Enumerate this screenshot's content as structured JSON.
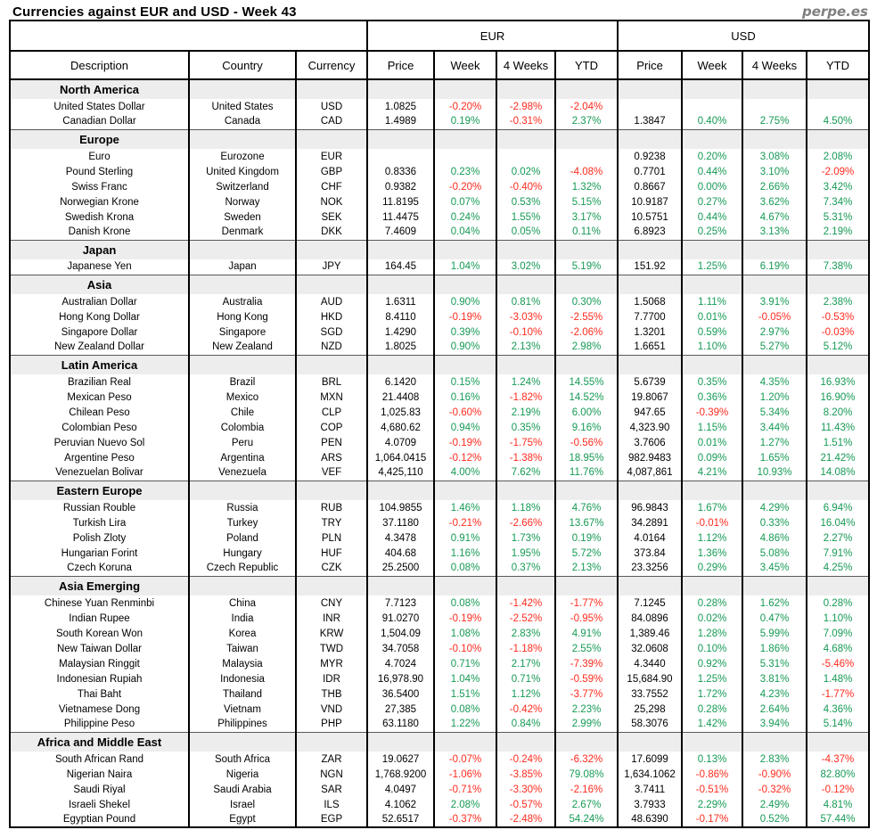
{
  "page": {
    "title": "Currencies against EUR and USD - Week 43",
    "brand": "perpe.es"
  },
  "table": {
    "group_headers": [
      "EUR",
      "USD"
    ],
    "columns": [
      "Description",
      "Country",
      "Currency",
      "Price",
      "Week",
      "4 Weeks",
      "YTD",
      "Price",
      "Week",
      "4 Weeks",
      "YTD"
    ],
    "colors": {
      "negative": "#ff2b1f",
      "positive": "#169a55",
      "section_bg": "#ededed",
      "brand_gray": "#7f7f7f"
    },
    "sections": [
      {
        "name": "North America",
        "rows": [
          [
            "United States Dollar",
            "United States",
            "USD",
            "1.0825",
            "-0.20%",
            "-2.98%",
            "-2.04%",
            "",
            "",
            "",
            ""
          ],
          [
            "Canadian Dollar",
            "Canada",
            "CAD",
            "1.4989",
            "0.19%",
            "-0.31%",
            "2.37%",
            "1.3847",
            "0.40%",
            "2.75%",
            "4.50%"
          ]
        ]
      },
      {
        "name": "Europe",
        "rows": [
          [
            "Euro",
            "Eurozone",
            "EUR",
            "",
            "",
            "",
            "",
            "0.9238",
            "0.20%",
            "3.08%",
            "2.08%"
          ],
          [
            "Pound Sterling",
            "United Kingdom",
            "GBP",
            "0.8336",
            "0.23%",
            "0.02%",
            "-4.08%",
            "0.7701",
            "0.44%",
            "3.10%",
            "-2.09%"
          ],
          [
            "Swiss Franc",
            "Switzerland",
            "CHF",
            "0.9382",
            "-0.20%",
            "-0.40%",
            "1.32%",
            "0.8667",
            "0.00%",
            "2.66%",
            "3.42%"
          ],
          [
            "Norwegian Krone",
            "Norway",
            "NOK",
            "11.8195",
            "0.07%",
            "0.53%",
            "5.15%",
            "10.9187",
            "0.27%",
            "3.62%",
            "7.34%"
          ],
          [
            "Swedish Krona",
            "Sweden",
            "SEK",
            "11.4475",
            "0.24%",
            "1.55%",
            "3.17%",
            "10.5751",
            "0.44%",
            "4.67%",
            "5.31%"
          ],
          [
            "Danish Krone",
            "Denmark",
            "DKK",
            "7.4609",
            "0.04%",
            "0.05%",
            "0.11%",
            "6.8923",
            "0.25%",
            "3.13%",
            "2.19%"
          ]
        ]
      },
      {
        "name": "Japan",
        "rows": [
          [
            "Japanese Yen",
            "Japan",
            "JPY",
            "164.45",
            "1.04%",
            "3.02%",
            "5.19%",
            "151.92",
            "1.25%",
            "6.19%",
            "7.38%"
          ]
        ]
      },
      {
        "name": "Asia",
        "rows": [
          [
            "Australian Dollar",
            "Australia",
            "AUD",
            "1.6311",
            "0.90%",
            "0.81%",
            "0.30%",
            "1.5068",
            "1.11%",
            "3.91%",
            "2.38%"
          ],
          [
            "Hong Kong Dollar",
            "Hong Kong",
            "HKD",
            "8.4110",
            "-0.19%",
            "-3.03%",
            "-2.55%",
            "7.7700",
            "0.01%",
            "-0.05%",
            "-0.53%"
          ],
          [
            "Singapore Dollar",
            "Singapore",
            "SGD",
            "1.4290",
            "0.39%",
            "-0.10%",
            "-2.06%",
            "1.3201",
            "0.59%",
            "2.97%",
            "-0.03%"
          ],
          [
            "New Zealand Dollar",
            "New Zealand",
            "NZD",
            "1.8025",
            "0.90%",
            "2.13%",
            "2.98%",
            "1.6651",
            "1.10%",
            "5.27%",
            "5.12%"
          ]
        ]
      },
      {
        "name": "Latin America",
        "rows": [
          [
            "Brazilian Real",
            "Brazil",
            "BRL",
            "6.1420",
            "0.15%",
            "1.24%",
            "14.55%",
            "5.6739",
            "0.35%",
            "4.35%",
            "16.93%"
          ],
          [
            "Mexican Peso",
            "Mexico",
            "MXN",
            "21.4408",
            "0.16%",
            "-1.82%",
            "14.52%",
            "19.8067",
            "0.36%",
            "1.20%",
            "16.90%"
          ],
          [
            "Chilean Peso",
            "Chile",
            "CLP",
            "1,025.83",
            "-0.60%",
            "2.19%",
            "6.00%",
            "947.65",
            "-0.39%",
            "5.34%",
            "8.20%"
          ],
          [
            "Colombian Peso",
            "Colombia",
            "COP",
            "4,680.62",
            "0.94%",
            "0.35%",
            "9.16%",
            "4,323.90",
            "1.15%",
            "3.44%",
            "11.43%"
          ],
          [
            "Peruvian Nuevo Sol",
            "Peru",
            "PEN",
            "4.0709",
            "-0.19%",
            "-1.75%",
            "-0.56%",
            "3.7606",
            "0.01%",
            "1.27%",
            "1.51%"
          ],
          [
            "Argentine Peso",
            "Argentina",
            "ARS",
            "1,064.0415",
            "-0.12%",
            "-1.38%",
            "18.95%",
            "982.9483",
            "0.09%",
            "1.65%",
            "21.42%"
          ],
          [
            "Venezuelan Bolivar",
            "Venezuela",
            "VEF",
            "4,425,110",
            "4.00%",
            "7.62%",
            "11.76%",
            "4,087,861",
            "4.21%",
            "10.93%",
            "14.08%"
          ]
        ]
      },
      {
        "name": "Eastern Europe",
        "rows": [
          [
            "Russian Rouble",
            "Russia",
            "RUB",
            "104.9855",
            "1.46%",
            "1.18%",
            "4.76%",
            "96.9843",
            "1.67%",
            "4.29%",
            "6.94%"
          ],
          [
            "Turkish Lira",
            "Turkey",
            "TRY",
            "37.1180",
            "-0.21%",
            "-2.66%",
            "13.67%",
            "34.2891",
            "-0.01%",
            "0.33%",
            "16.04%"
          ],
          [
            "Polish Zloty",
            "Poland",
            "PLN",
            "4.3478",
            "0.91%",
            "1.73%",
            "0.19%",
            "4.0164",
            "1.12%",
            "4.86%",
            "2.27%"
          ],
          [
            "Hungarian Forint",
            "Hungary",
            "HUF",
            "404.68",
            "1.16%",
            "1.95%",
            "5.72%",
            "373.84",
            "1.36%",
            "5.08%",
            "7.91%"
          ],
          [
            "Czech Koruna",
            "Czech Republic",
            "CZK",
            "25.2500",
            "0.08%",
            "0.37%",
            "2.13%",
            "23.3256",
            "0.29%",
            "3.45%",
            "4.25%"
          ]
        ]
      },
      {
        "name": "Asia Emerging",
        "rows": [
          [
            "Chinese Yuan Renminbi",
            "China",
            "CNY",
            "7.7123",
            "0.08%",
            "-1.42%",
            "-1.77%",
            "7.1245",
            "0.28%",
            "1.62%",
            "0.28%"
          ],
          [
            "Indian Rupee",
            "India",
            "INR",
            "91.0270",
            "-0.19%",
            "-2.52%",
            "-0.95%",
            "84.0896",
            "0.02%",
            "0.47%",
            "1.10%"
          ],
          [
            "South Korean Won",
            "Korea",
            "KRW",
            "1,504.09",
            "1.08%",
            "2.83%",
            "4.91%",
            "1,389.46",
            "1.28%",
            "5.99%",
            "7.09%"
          ],
          [
            "New Taiwan Dollar",
            "Taiwan",
            "TWD",
            "34.7058",
            "-0.10%",
            "-1.18%",
            "2.55%",
            "32.0608",
            "0.10%",
            "1.86%",
            "4.68%"
          ],
          [
            "Malaysian Ringgit",
            "Malaysia",
            "MYR",
            "4.7024",
            "0.71%",
            "2.17%",
            "-7.39%",
            "4.3440",
            "0.92%",
            "5.31%",
            "-5.46%"
          ],
          [
            "Indonesian Rupiah",
            "Indonesia",
            "IDR",
            "16,978.90",
            "1.04%",
            "0.71%",
            "-0.59%",
            "15,684.90",
            "1.25%",
            "3.81%",
            "1.48%"
          ],
          [
            "Thai Baht",
            "Thailand",
            "THB",
            "36.5400",
            "1.51%",
            "1.12%",
            "-3.77%",
            "33.7552",
            "1.72%",
            "4.23%",
            "-1.77%"
          ],
          [
            "Vietnamese Dong",
            "Vietnam",
            "VND",
            "27,385",
            "0.08%",
            "-0.42%",
            "2.23%",
            "25,298",
            "0.28%",
            "2.64%",
            "4.36%"
          ],
          [
            "Philippine Peso",
            "Philippines",
            "PHP",
            "63.1180",
            "1.22%",
            "0.84%",
            "2.99%",
            "58.3076",
            "1.42%",
            "3.94%",
            "5.14%"
          ]
        ]
      },
      {
        "name": "Africa and Middle East",
        "rows": [
          [
            "South African Rand",
            "South Africa",
            "ZAR",
            "19.0627",
            "-0.07%",
            "-0.24%",
            "-6.32%",
            "17.6099",
            "0.13%",
            "2.83%",
            "-4.37%"
          ],
          [
            "Nigerian Naira",
            "Nigeria",
            "NGN",
            "1,768.9200",
            "-1.06%",
            "-3.85%",
            "79.08%",
            "1,634.1062",
            "-0.86%",
            "-0.90%",
            "82.80%"
          ],
          [
            "Saudi Riyal",
            "Saudi Arabia",
            "SAR",
            "4.0497",
            "-0.71%",
            "-3.30%",
            "-2.16%",
            "3.7411",
            "-0.51%",
            "-0.32%",
            "-0.12%"
          ],
          [
            "Israeli Shekel",
            "Israel",
            "ILS",
            "4.1062",
            "2.08%",
            "-0.57%",
            "2.67%",
            "3.7933",
            "2.29%",
            "2.49%",
            "4.81%"
          ],
          [
            "Egyptian Pound",
            "Egypt",
            "EGP",
            "52.6517",
            "-0.37%",
            "-2.48%",
            "54.24%",
            "48.6390",
            "-0.17%",
            "0.52%",
            "57.44%"
          ]
        ]
      }
    ]
  }
}
